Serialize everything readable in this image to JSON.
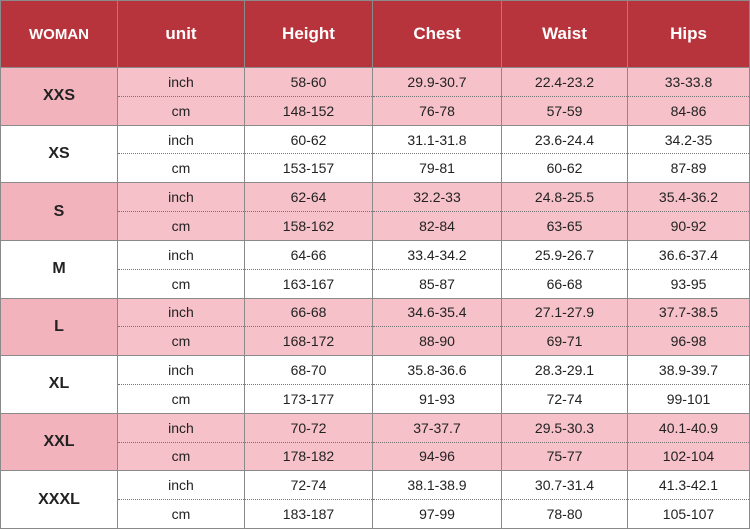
{
  "table": {
    "header": [
      "WOMAN",
      "unit",
      "Height",
      "Chest",
      "Waist",
      "Hips"
    ],
    "groups": [
      {
        "size": "XXS",
        "rows": [
          [
            "inch",
            "58-60",
            "29.9-30.7",
            "22.4-23.2",
            "33-33.8"
          ],
          [
            "cm",
            "148-152",
            "76-78",
            "57-59",
            "84-86"
          ]
        ]
      },
      {
        "size": "XS",
        "rows": [
          [
            "inch",
            "60-62",
            "31.1-31.8",
            "23.6-24.4",
            "34.2-35"
          ],
          [
            "cm",
            "153-157",
            "79-81",
            "60-62",
            "87-89"
          ]
        ]
      },
      {
        "size": "S",
        "rows": [
          [
            "inch",
            "62-64",
            "32.2-33",
            "24.8-25.5",
            "35.4-36.2"
          ],
          [
            "cm",
            "158-162",
            "82-84",
            "63-65",
            "90-92"
          ]
        ]
      },
      {
        "size": "M",
        "rows": [
          [
            "inch",
            "64-66",
            "33.4-34.2",
            "25.9-26.7",
            "36.6-37.4"
          ],
          [
            "cm",
            "163-167",
            "85-87",
            "66-68",
            "93-95"
          ]
        ]
      },
      {
        "size": "L",
        "rows": [
          [
            "inch",
            "66-68",
            "34.6-35.4",
            "27.1-27.9",
            "37.7-38.5"
          ],
          [
            "cm",
            "168-172",
            "88-90",
            "69-71",
            "96-98"
          ]
        ]
      },
      {
        "size": "XL",
        "rows": [
          [
            "inch",
            "68-70",
            "35.8-36.6",
            "28.3-29.1",
            "38.9-39.7"
          ],
          [
            "cm",
            "173-177",
            "91-93",
            "72-74",
            "99-101"
          ]
        ]
      },
      {
        "size": "XXL",
        "rows": [
          [
            "inch",
            "70-72",
            "37-37.7",
            "29.5-30.3",
            "40.1-40.9"
          ],
          [
            "cm",
            "178-182",
            "94-96",
            "75-77",
            "102-104"
          ]
        ]
      },
      {
        "size": "XXXL",
        "rows": [
          [
            "inch",
            "72-74",
            "38.1-38.9",
            "30.7-31.4",
            "41.3-42.1"
          ],
          [
            "cm",
            "183-187",
            "97-99",
            "78-80",
            "105-107"
          ]
        ]
      }
    ]
  }
}
